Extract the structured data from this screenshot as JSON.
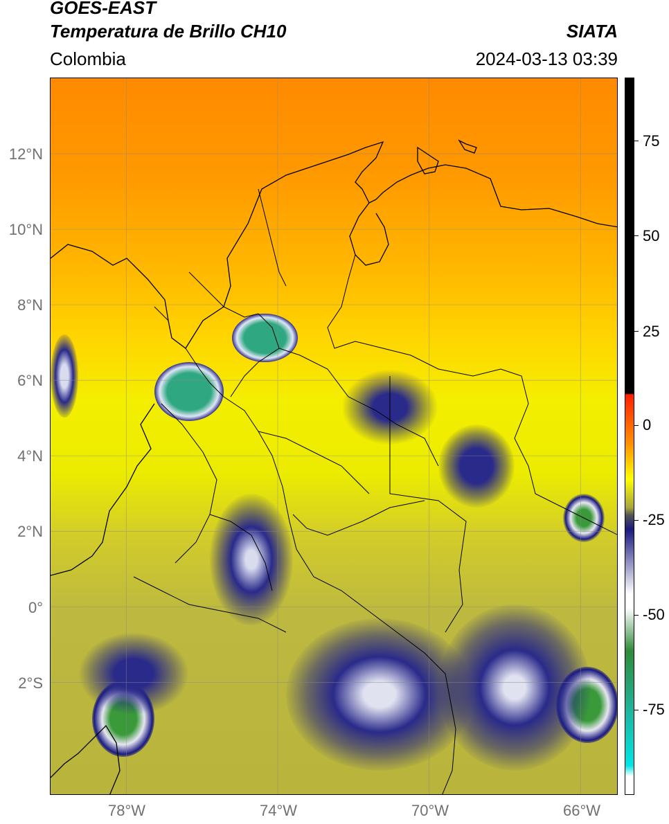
{
  "header": {
    "title": "GOES-EAST",
    "subtitle": "Temperatura de Brillo CH10",
    "region": "Colombia",
    "brand": "SIATA",
    "datetime": "2024-03-13 03:39"
  },
  "axes": {
    "lat_ticks": [
      "12°N",
      "10°N",
      "8°N",
      "6°N",
      "4°N",
      "2°N",
      "0°",
      "2°S"
    ],
    "lon_ticks": [
      "78°W",
      "74°W",
      "70°W",
      "66°W"
    ],
    "lat_values": [
      12,
      10,
      8,
      6,
      4,
      2,
      0,
      -2
    ],
    "lon_values": [
      -78,
      -74,
      -70,
      -66
    ],
    "lat_range": [
      -5,
      14
    ],
    "lon_range": [
      -80,
      -65
    ]
  },
  "colorbar": {
    "ticks": [
      "75",
      "50",
      "25",
      "0",
      "-25",
      "-50",
      "-75"
    ],
    "values": [
      75,
      50,
      25,
      0,
      -25,
      -50,
      -75
    ],
    "range": [
      -95,
      90
    ],
    "colors": {
      "warm_black": "#000000",
      "red": "#ff2000",
      "orange": "#ff9000",
      "yellow": "#ffff00",
      "olive": "#a8a43c",
      "navy": "#1a1a80",
      "white": "#ffffff",
      "green": "#2e8b3a",
      "cyan": "#00e5e5"
    }
  }
}
